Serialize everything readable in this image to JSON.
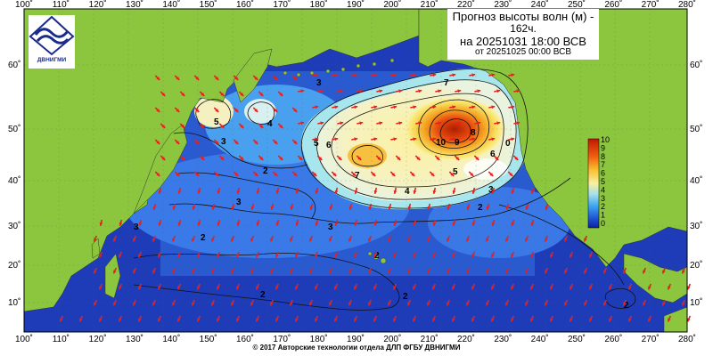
{
  "title": {
    "line1": "Прогноз высоты волн (м) -",
    "line2": "162ч.",
    "line3": "на 20251031 18:00 ВСВ",
    "line4": "от 20251025 00:00 ВСВ"
  },
  "logo": {
    "text": "ДВНИГМИ",
    "icon": "wave-emblem-icon"
  },
  "footer": "© 2017 Авторские технологии отдела ДЛП ФГБУ ДВНИГМИ",
  "lon_labels": [
    "100˚",
    "110˚",
    "120˚",
    "130˚",
    "140˚",
    "150˚",
    "160˚",
    "170˚",
    "180˚",
    "190˚",
    "200˚",
    "210˚",
    "220˚",
    "230˚",
    "240˚",
    "250˚",
    "260˚",
    "270˚",
    "280˚"
  ],
  "lat_labels": [
    "60˚",
    "50˚",
    "40˚",
    "30˚",
    "20˚",
    "10˚"
  ],
  "colorbar": {
    "ticks": [
      "10",
      "9",
      "8",
      "7",
      "6",
      "5",
      "4",
      "3",
      "2",
      "1",
      "0"
    ]
  },
  "contour_labels": [
    "3",
    "5",
    "4",
    "3",
    "5",
    "6",
    "7",
    "8",
    "9",
    "10",
    "7",
    "6",
    "5",
    "4",
    "3",
    "2",
    "2",
    "3",
    "3",
    "2",
    "2",
    "2",
    "3",
    "2",
    "2",
    "0"
  ],
  "colors": {
    "land": "#8cc63f",
    "ocean_low": "#1432b4",
    "ocean_mid": "#3c8cf0",
    "peak": "#c82800"
  }
}
